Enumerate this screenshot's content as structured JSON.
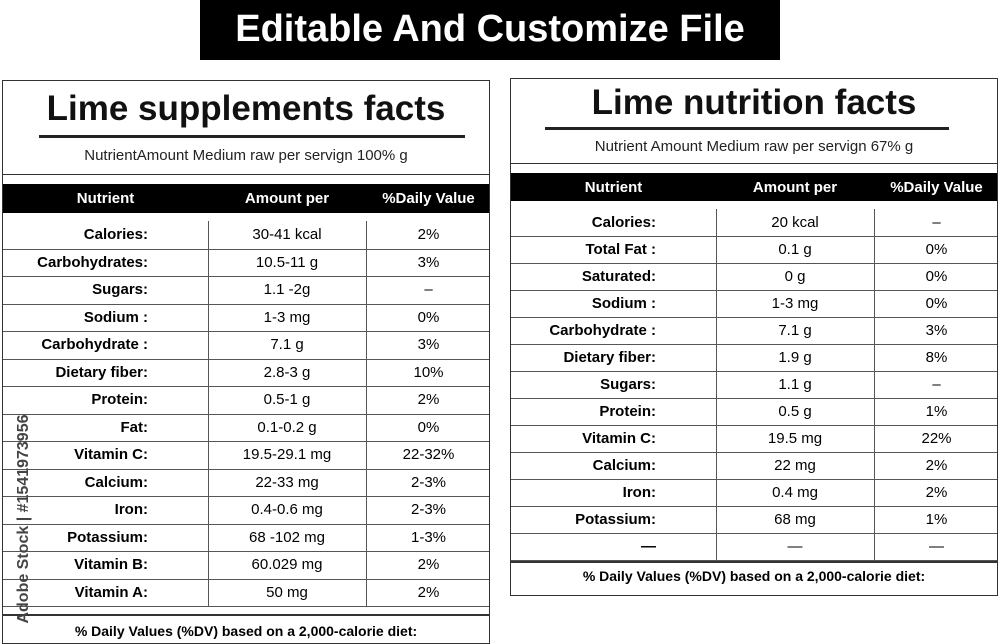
{
  "banner": "Editable And Customize File",
  "watermark": "Adobe Stock | #1541973956",
  "panels": [
    {
      "title": "Lime supplements facts",
      "serving": "NutrientAmount Medium raw per servign 100% g",
      "headers": [
        "Nutrient",
        "Amount per",
        "%Daily Value"
      ],
      "rows": [
        [
          "Calories:",
          "30-41 kcal",
          "2%"
        ],
        [
          "Carbohydrates:",
          "10.5-11 g",
          "3%"
        ],
        [
          "Sugars:",
          "1.1 -2g",
          "–"
        ],
        [
          "Sodium :",
          "1-3 mg",
          "0%"
        ],
        [
          "Carbohydrate :",
          "7.1 g",
          "3%"
        ],
        [
          "Dietary fiber:",
          "2.8-3 g",
          "10%"
        ],
        [
          "Protein:",
          "0.5-1 g",
          "2%"
        ],
        [
          "Fat:",
          "0.1-0.2 g",
          "0%"
        ],
        [
          "Vitamin C:",
          "19.5-29.1 mg",
          "22-32%"
        ],
        [
          "Calcium:",
          "22-33 mg",
          "2-3%"
        ],
        [
          "Iron:",
          "0.4-0.6 mg",
          "2-3%"
        ],
        [
          "Potassium:",
          "68 -102 mg",
          "1-3%"
        ],
        [
          "Vitamin B:",
          "60.029 mg",
          "2%"
        ],
        [
          "Vitamin A:",
          "50 mg",
          "2%"
        ]
      ],
      "footer": "% Daily Values (%DV) based on a 2,000-calorie diet:"
    },
    {
      "title": "Lime nutrition facts",
      "serving": "Nutrient Amount Medium raw per servign 67% g",
      "headers": [
        "Nutrient",
        "Amount per",
        "%Daily Value"
      ],
      "rows": [
        [
          "Calories:",
          "20 kcal",
          "–"
        ],
        [
          "Total Fat :",
          "0.1 g",
          "0%"
        ],
        [
          "Saturated:",
          "0 g",
          "0%"
        ],
        [
          "Sodium :",
          "1-3 mg",
          "0%"
        ],
        [
          "Carbohydrate :",
          "7.1 g",
          "3%"
        ],
        [
          "Dietary fiber:",
          "1.9 g",
          "8%"
        ],
        [
          "Sugars:",
          "1.1 g",
          "–"
        ],
        [
          "Protein:",
          "0.5 g",
          "1%"
        ],
        [
          "Vitamin C:",
          "19.5 mg",
          "22%"
        ],
        [
          "Calcium:",
          "22 mg",
          "2%"
        ],
        [
          "Iron:",
          "0.4 mg",
          "2%"
        ],
        [
          "Potassium:",
          "68 mg",
          "1%"
        ],
        [
          "—",
          "—",
          "—"
        ]
      ],
      "footer": "% Daily Values (%DV) based on a 2,000-calorie diet:"
    }
  ]
}
